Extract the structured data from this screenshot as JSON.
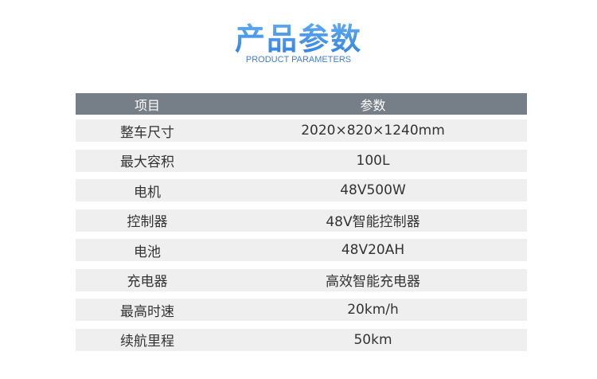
{
  "title": "产品参数",
  "subtitle": "PRODUCT PARAMETERS",
  "header": {
    "item": "项目",
    "param": "参数"
  },
  "rows": [
    {
      "item": "整车尺寸",
      "value": "2020×820×1240mm"
    },
    {
      "item": "最大容积",
      "value": "100L"
    },
    {
      "item": "电机",
      "value": "48V500W"
    },
    {
      "item": "控制器",
      "value": "48V智能控制器"
    },
    {
      "item": "电池",
      "value": "48V20AH"
    },
    {
      "item": "充电器",
      "value": "高效智能充电器"
    },
    {
      "item": "最高时速",
      "value": "20km/h"
    },
    {
      "item": "续航里程",
      "value": "50km"
    }
  ]
}
